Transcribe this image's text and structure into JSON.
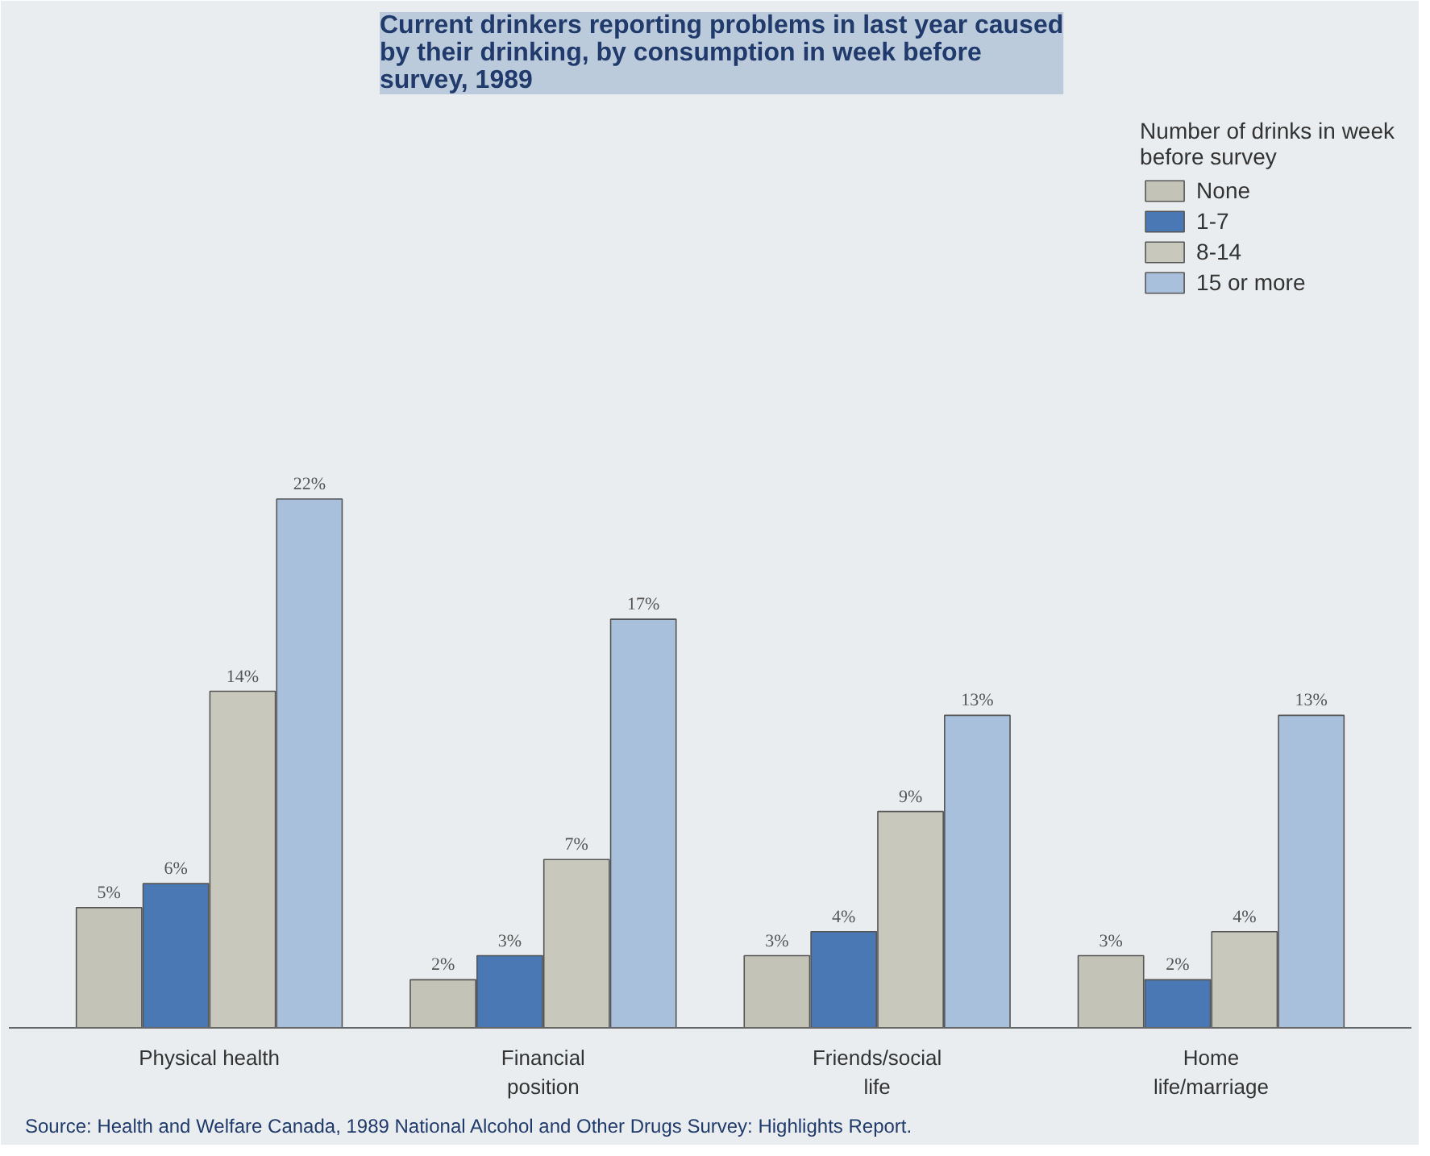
{
  "chart_data": {
    "type": "bar",
    "title": "Current drinkers reporting problems in last year caused by their drinking, by consumption in week before survey, 1989",
    "categories": [
      "Physical health",
      "Financial position",
      "Friends/social life",
      "Home life/marriage"
    ],
    "legend_title": "Number of drinks in week before survey",
    "legend": "top right",
    "grid": false,
    "series": [
      {
        "name": "None",
        "color": "#c4c3b8",
        "values": [
          5,
          2,
          3,
          3
        ],
        "value_labels": [
          "5%",
          "2%",
          "3%",
          "3%"
        ]
      },
      {
        "name": "1-7",
        "color": "#4a78b4",
        "values": [
          6,
          3,
          4,
          2
        ],
        "value_labels": [
          "6%",
          "3%",
          "4%",
          "2%"
        ]
      },
      {
        "name": "8-14",
        "color": "#c9c8bd",
        "values": [
          14,
          7,
          9,
          4
        ],
        "value_labels": [
          "14%",
          "7%",
          "9%",
          "4%"
        ]
      },
      {
        "name": "15 or more",
        "color": "#a9c0dc",
        "values": [
          22,
          17,
          13,
          13
        ],
        "value_labels": [
          "22%",
          "17%",
          "13%",
          "13%"
        ]
      }
    ],
    "annotations": [
      "Source: Health and Welfare Canada, 1989 National Alcohol and Other Drugs Survey: Highlights Report."
    ]
  }
}
